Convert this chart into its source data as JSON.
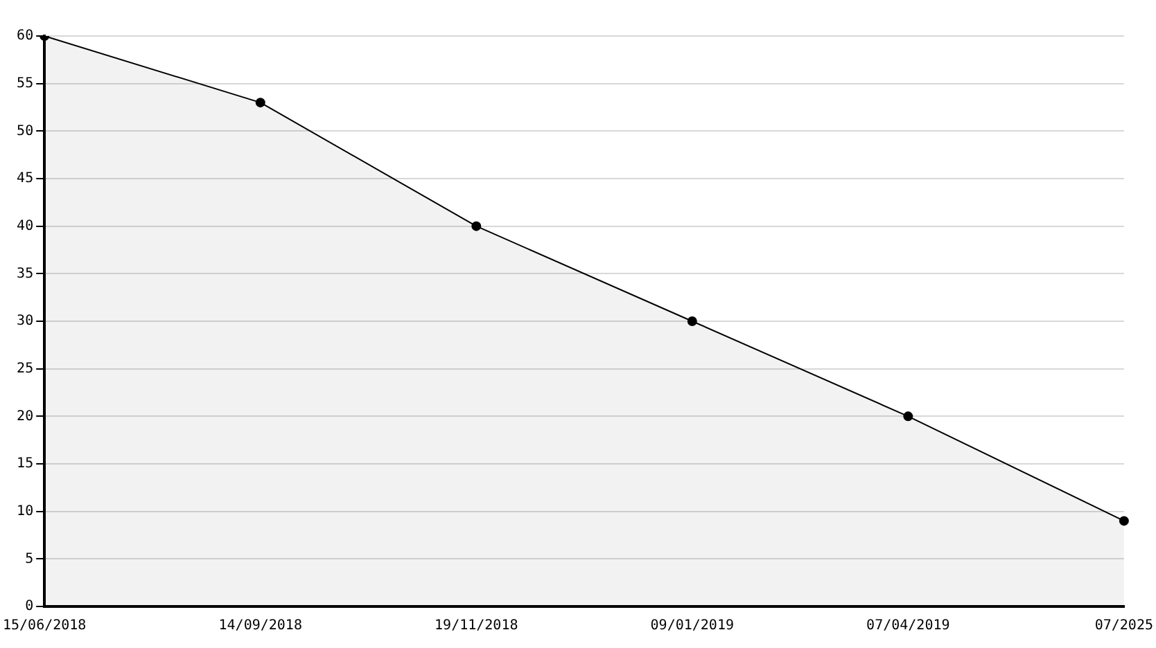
{
  "chart_data": {
    "type": "area",
    "categories": [
      "15/06/2018",
      "14/09/2018",
      "19/11/2018",
      "09/01/2019",
      "07/04/2019",
      "07/2025"
    ],
    "series": [
      {
        "color": "#000000",
        "values": [
          60,
          53,
          40,
          30,
          20,
          9
        ]
      }
    ],
    "ylim": [
      0,
      60
    ],
    "yticks": [
      0,
      5,
      10,
      15,
      20,
      25,
      30,
      35,
      40,
      45,
      50,
      55,
      60
    ],
    "grid": "y",
    "legend": false,
    "marker": "circle",
    "line_style": "solid"
  }
}
